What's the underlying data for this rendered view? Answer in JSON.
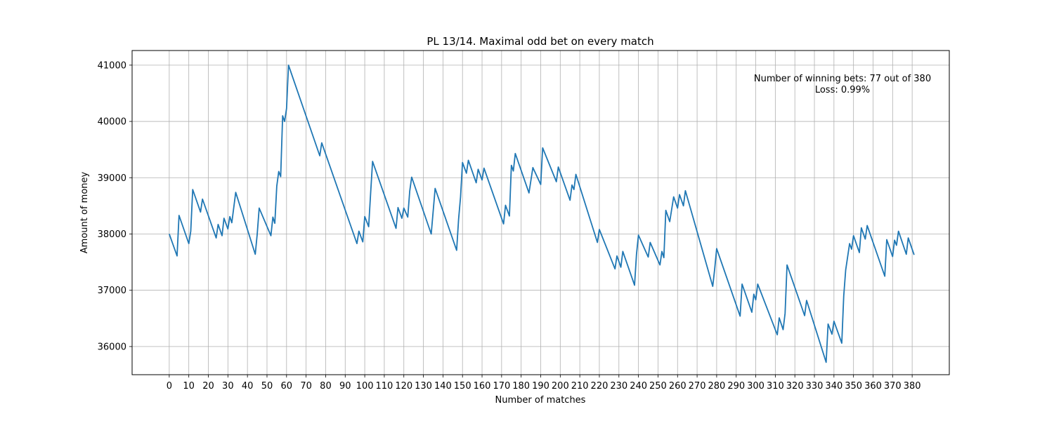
{
  "chart_data": {
    "type": "line",
    "title": "PL 13/14. Maximal odd bet on every match",
    "xlabel": "Number of matches",
    "ylabel": "Amount of money",
    "xlim": [
      -19,
      399
    ],
    "ylim": [
      35500,
      41260
    ],
    "xticks": [
      0,
      10,
      20,
      30,
      40,
      50,
      60,
      70,
      80,
      90,
      100,
      110,
      120,
      130,
      140,
      150,
      160,
      170,
      180,
      190,
      200,
      210,
      220,
      230,
      240,
      250,
      260,
      270,
      280,
      290,
      300,
      310,
      320,
      330,
      340,
      350,
      360,
      370,
      380
    ],
    "yticks": [
      36000,
      37000,
      38000,
      39000,
      40000,
      41000
    ],
    "grid": true,
    "line_color": "#1f77b4",
    "annotations": [
      "Number of winning bets: 77 out of 380",
      "Loss: 0.99%"
    ],
    "series": [
      {
        "points": [
          [
            0,
            38000
          ],
          [
            4,
            37610
          ],
          [
            5,
            38330
          ],
          [
            10,
            37830
          ],
          [
            11,
            38050
          ],
          [
            12,
            38790
          ],
          [
            16,
            38390
          ],
          [
            17,
            38620
          ],
          [
            24,
            37930
          ],
          [
            25,
            38170
          ],
          [
            27,
            37970
          ],
          [
            28,
            38280
          ],
          [
            30,
            38090
          ],
          [
            31,
            38310
          ],
          [
            32,
            38200
          ],
          [
            34,
            38740
          ],
          [
            44,
            37640
          ],
          [
            45,
            38000
          ],
          [
            46,
            38460
          ],
          [
            52,
            37970
          ],
          [
            53,
            38300
          ],
          [
            54,
            38190
          ],
          [
            55,
            38850
          ],
          [
            56,
            39110
          ],
          [
            57,
            39020
          ],
          [
            58,
            40100
          ],
          [
            59,
            40000
          ],
          [
            60,
            40230
          ],
          [
            61,
            41000
          ],
          [
            77,
            39390
          ],
          [
            78,
            39620
          ],
          [
            96,
            37830
          ],
          [
            97,
            38050
          ],
          [
            99,
            37860
          ],
          [
            100,
            38310
          ],
          [
            102,
            38130
          ],
          [
            103,
            38720
          ],
          [
            104,
            39290
          ],
          [
            116,
            38100
          ],
          [
            117,
            38470
          ],
          [
            119,
            38280
          ],
          [
            120,
            38460
          ],
          [
            122,
            38300
          ],
          [
            123,
            38760
          ],
          [
            124,
            39010
          ],
          [
            134,
            38000
          ],
          [
            136,
            38810
          ],
          [
            147,
            37710
          ],
          [
            148,
            38260
          ],
          [
            149,
            38660
          ],
          [
            150,
            39270
          ],
          [
            152,
            39080
          ],
          [
            153,
            39310
          ],
          [
            157,
            38910
          ],
          [
            158,
            39150
          ],
          [
            160,
            38960
          ],
          [
            161,
            39170
          ],
          [
            171,
            38180
          ],
          [
            172,
            38510
          ],
          [
            174,
            38320
          ],
          [
            175,
            39220
          ],
          [
            176,
            39120
          ],
          [
            177,
            39430
          ],
          [
            184,
            38730
          ],
          [
            186,
            39180
          ],
          [
            190,
            38880
          ],
          [
            191,
            39530
          ],
          [
            198,
            38930
          ],
          [
            199,
            39190
          ],
          [
            205,
            38600
          ],
          [
            206,
            38870
          ],
          [
            207,
            38790
          ],
          [
            208,
            39060
          ],
          [
            219,
            37850
          ],
          [
            220,
            38080
          ],
          [
            228,
            37380
          ],
          [
            229,
            37610
          ],
          [
            231,
            37410
          ],
          [
            232,
            37690
          ],
          [
            238,
            37090
          ],
          [
            239,
            37640
          ],
          [
            240,
            37980
          ],
          [
            245,
            37590
          ],
          [
            246,
            37850
          ],
          [
            251,
            37450
          ],
          [
            252,
            37690
          ],
          [
            253,
            37580
          ],
          [
            254,
            38420
          ],
          [
            256,
            38220
          ],
          [
            258,
            38660
          ],
          [
            260,
            38460
          ],
          [
            261,
            38700
          ],
          [
            263,
            38500
          ],
          [
            264,
            38770
          ],
          [
            278,
            37070
          ],
          [
            279,
            37380
          ],
          [
            280,
            37740
          ],
          [
            292,
            36540
          ],
          [
            293,
            37110
          ],
          [
            298,
            36610
          ],
          [
            299,
            36930
          ],
          [
            300,
            36830
          ],
          [
            301,
            37110
          ],
          [
            311,
            36210
          ],
          [
            312,
            36510
          ],
          [
            314,
            36300
          ],
          [
            315,
            36590
          ],
          [
            316,
            37450
          ],
          [
            325,
            36550
          ],
          [
            326,
            36820
          ],
          [
            336,
            35720
          ],
          [
            337,
            36400
          ],
          [
            339,
            36220
          ],
          [
            340,
            36450
          ],
          [
            344,
            36060
          ],
          [
            345,
            36900
          ],
          [
            346,
            37360
          ],
          [
            348,
            37830
          ],
          [
            349,
            37730
          ],
          [
            350,
            37970
          ],
          [
            353,
            37670
          ],
          [
            354,
            38110
          ],
          [
            356,
            37910
          ],
          [
            357,
            38150
          ],
          [
            366,
            37250
          ],
          [
            367,
            37900
          ],
          [
            370,
            37600
          ],
          [
            371,
            37890
          ],
          [
            372,
            37800
          ],
          [
            373,
            38050
          ],
          [
            377,
            37640
          ],
          [
            378,
            37930
          ],
          [
            381,
            37630
          ]
        ]
      }
    ]
  }
}
